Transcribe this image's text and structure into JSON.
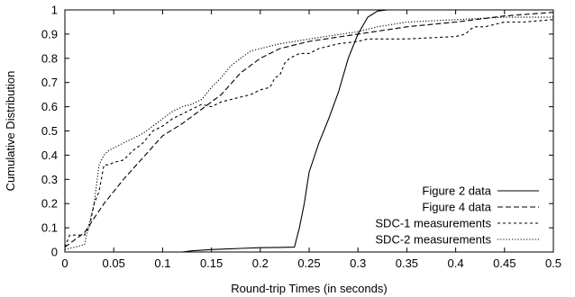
{
  "chart_data": {
    "type": "line",
    "title": "",
    "xlabel": "Round-trip Times (in seconds)",
    "ylabel": "Cumulative Distribution",
    "xlim": [
      0,
      0.5
    ],
    "ylim": [
      0,
      1
    ],
    "x_ticks": [
      "0",
      "0.05",
      "0.1",
      "0.15",
      "0.2",
      "0.25",
      "0.3",
      "0.35",
      "0.4",
      "0.45",
      "0.5"
    ],
    "y_ticks": [
      "0",
      "0.1",
      "0.2",
      "0.3",
      "0.4",
      "0.5",
      "0.6",
      "0.7",
      "0.8",
      "0.9",
      "1"
    ],
    "grid": false,
    "legend_position": "bottom-right",
    "series": [
      {
        "name": "Figure 2 data",
        "dash": "solid",
        "points": [
          [
            0,
            0
          ],
          [
            0.12,
            0
          ],
          [
            0.13,
            0.005
          ],
          [
            0.15,
            0.01
          ],
          [
            0.18,
            0.015
          ],
          [
            0.2,
            0.018
          ],
          [
            0.22,
            0.019
          ],
          [
            0.235,
            0.02
          ],
          [
            0.24,
            0.1
          ],
          [
            0.245,
            0.2
          ],
          [
            0.25,
            0.33
          ],
          [
            0.26,
            0.45
          ],
          [
            0.27,
            0.55
          ],
          [
            0.28,
            0.66
          ],
          [
            0.29,
            0.8
          ],
          [
            0.3,
            0.9
          ],
          [
            0.31,
            0.97
          ],
          [
            0.32,
            0.995
          ],
          [
            0.33,
            1.0
          ],
          [
            0.5,
            1.0
          ]
        ]
      },
      {
        "name": "Figure 4 data",
        "dash": "long-dash",
        "points": [
          [
            0,
            0.02
          ],
          [
            0.01,
            0.05
          ],
          [
            0.02,
            0.08
          ],
          [
            0.03,
            0.14
          ],
          [
            0.04,
            0.2
          ],
          [
            0.05,
            0.25
          ],
          [
            0.06,
            0.3
          ],
          [
            0.08,
            0.39
          ],
          [
            0.1,
            0.48
          ],
          [
            0.12,
            0.53
          ],
          [
            0.14,
            0.59
          ],
          [
            0.16,
            0.65
          ],
          [
            0.18,
            0.74
          ],
          [
            0.2,
            0.8
          ],
          [
            0.22,
            0.84
          ],
          [
            0.25,
            0.87
          ],
          [
            0.3,
            0.9
          ],
          [
            0.35,
            0.93
          ],
          [
            0.4,
            0.95
          ],
          [
            0.45,
            0.975
          ],
          [
            0.5,
            0.99
          ]
        ]
      },
      {
        "name": "SDC-1 measurements",
        "dash": "short-dash",
        "points": [
          [
            0,
            0.02
          ],
          [
            0.005,
            0.07
          ],
          [
            0.02,
            0.07
          ],
          [
            0.025,
            0.1
          ],
          [
            0.03,
            0.2
          ],
          [
            0.035,
            0.25
          ],
          [
            0.04,
            0.36
          ],
          [
            0.045,
            0.36
          ],
          [
            0.05,
            0.37
          ],
          [
            0.06,
            0.38
          ],
          [
            0.07,
            0.42
          ],
          [
            0.08,
            0.45
          ],
          [
            0.09,
            0.5
          ],
          [
            0.1,
            0.52
          ],
          [
            0.11,
            0.55
          ],
          [
            0.12,
            0.57
          ],
          [
            0.13,
            0.59
          ],
          [
            0.14,
            0.61
          ],
          [
            0.15,
            0.6
          ],
          [
            0.16,
            0.62
          ],
          [
            0.17,
            0.63
          ],
          [
            0.18,
            0.64
          ],
          [
            0.19,
            0.65
          ],
          [
            0.2,
            0.67
          ],
          [
            0.21,
            0.68
          ],
          [
            0.215,
            0.72
          ],
          [
            0.22,
            0.73
          ],
          [
            0.225,
            0.78
          ],
          [
            0.23,
            0.8
          ],
          [
            0.24,
            0.82
          ],
          [
            0.25,
            0.82
          ],
          [
            0.26,
            0.84
          ],
          [
            0.27,
            0.85
          ],
          [
            0.28,
            0.86
          ],
          [
            0.3,
            0.87
          ],
          [
            0.31,
            0.88
          ],
          [
            0.35,
            0.88
          ],
          [
            0.4,
            0.89
          ],
          [
            0.41,
            0.9
          ],
          [
            0.415,
            0.92
          ],
          [
            0.42,
            0.93
          ],
          [
            0.43,
            0.93
          ],
          [
            0.44,
            0.94
          ],
          [
            0.45,
            0.95
          ],
          [
            0.47,
            0.95
          ],
          [
            0.5,
            0.96
          ]
        ]
      },
      {
        "name": "SDC-2 measurements",
        "dash": "dotted",
        "points": [
          [
            0,
            0.01
          ],
          [
            0.01,
            0.02
          ],
          [
            0.02,
            0.03
          ],
          [
            0.025,
            0.12
          ],
          [
            0.03,
            0.2
          ],
          [
            0.035,
            0.36
          ],
          [
            0.04,
            0.4
          ],
          [
            0.045,
            0.42
          ],
          [
            0.05,
            0.43
          ],
          [
            0.06,
            0.45
          ],
          [
            0.07,
            0.47
          ],
          [
            0.08,
            0.49
          ],
          [
            0.09,
            0.52
          ],
          [
            0.1,
            0.55
          ],
          [
            0.11,
            0.58
          ],
          [
            0.12,
            0.6
          ],
          [
            0.13,
            0.61
          ],
          [
            0.14,
            0.63
          ],
          [
            0.15,
            0.68
          ],
          [
            0.16,
            0.72
          ],
          [
            0.17,
            0.77
          ],
          [
            0.18,
            0.8
          ],
          [
            0.19,
            0.83
          ],
          [
            0.2,
            0.84
          ],
          [
            0.22,
            0.86
          ],
          [
            0.25,
            0.88
          ],
          [
            0.3,
            0.91
          ],
          [
            0.32,
            0.93
          ],
          [
            0.35,
            0.95
          ],
          [
            0.4,
            0.96
          ],
          [
            0.45,
            0.97
          ],
          [
            0.5,
            0.97
          ]
        ]
      }
    ]
  }
}
